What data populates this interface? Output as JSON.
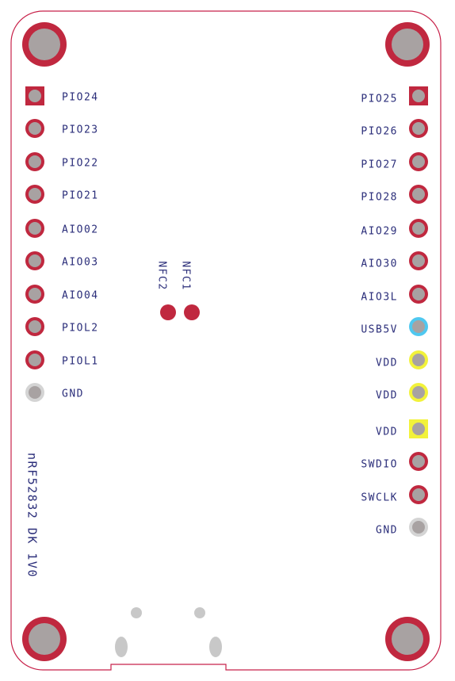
{
  "board": {
    "label": "nRF52832 DK 1V0"
  },
  "nfc": [
    "NFC2",
    "NFC1"
  ],
  "left_pins": [
    "PIO24",
    "PIO23",
    "PIO22",
    "PIO21",
    "AIO02",
    "AIO03",
    "AIO04",
    "PIOL2",
    "PIOL1",
    "GND"
  ],
  "right_pins": [
    "PIO25",
    "PIO26",
    "PIO27",
    "PIO28",
    "AIO29",
    "AIO30",
    "AIO3L",
    "USB5V",
    "VDD",
    "VDD",
    "VDD",
    "SWDIO",
    "SWCLK",
    "GND"
  ]
}
